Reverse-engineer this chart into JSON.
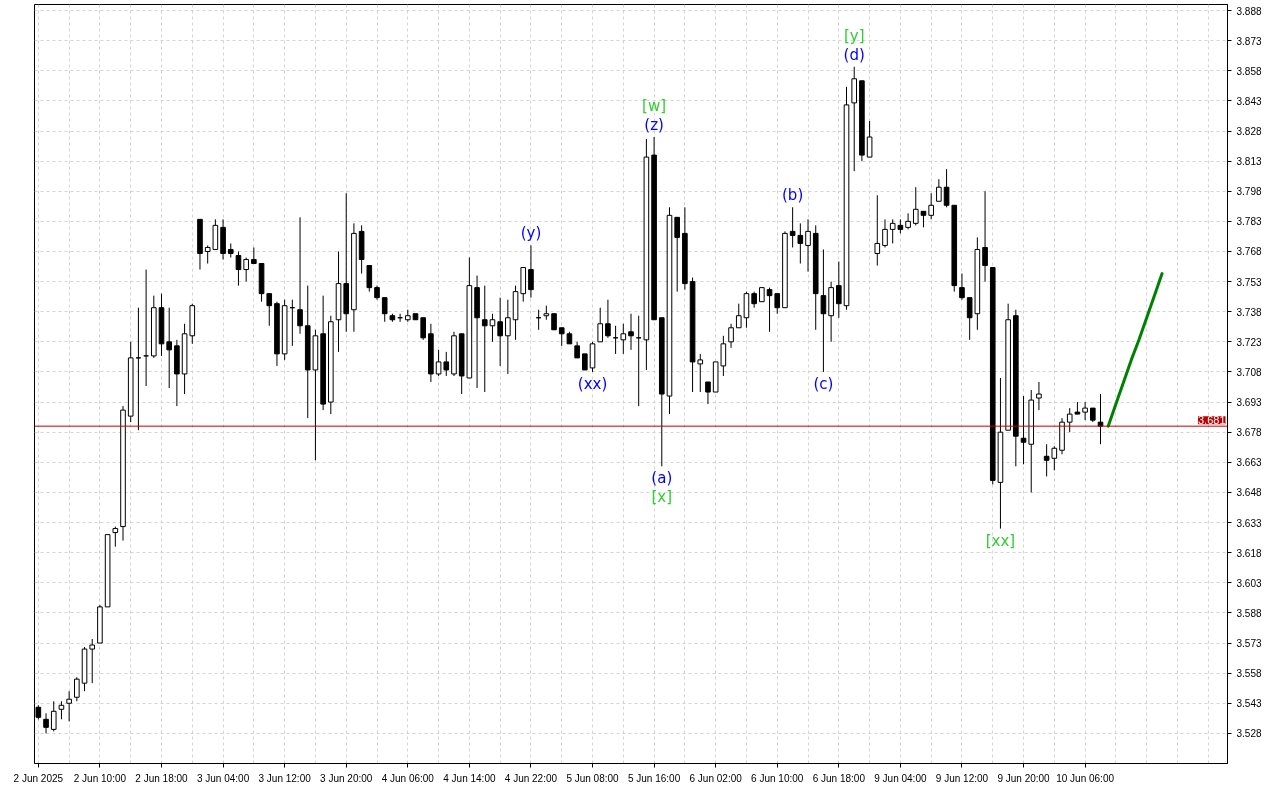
{
  "chart_data": {
    "type": "candlestick",
    "color": "#000000",
    "categories": [
      "2 Jun 2025",
      null,
      null,
      null,
      null,
      null,
      null,
      null,
      "2 Jun 10:00",
      null,
      null,
      null,
      null,
      null,
      null,
      null,
      "2 Jun 18:00",
      null,
      null,
      null,
      null,
      null,
      null,
      null,
      "3 Jun 04:00",
      null,
      null,
      null,
      null,
      null,
      null,
      null,
      "3 Jun 12:00",
      null,
      null,
      null,
      null,
      null,
      null,
      null,
      "3 Jun 20:00",
      null,
      null,
      null,
      null,
      null,
      null,
      null,
      "4 Jun 06:00",
      null,
      null,
      null,
      null,
      null,
      null,
      null,
      "4 Jun 14:00",
      null,
      null,
      null,
      null,
      null,
      null,
      null,
      "4 Jun 22:00",
      null,
      null,
      null,
      null,
      null,
      null,
      null,
      "5 Jun 08:00",
      null,
      null,
      null,
      null,
      null,
      null,
      null,
      "5 Jun 16:00",
      null,
      null,
      null,
      null,
      null,
      null,
      null,
      "6 Jun 02:00",
      null,
      null,
      null,
      null,
      null,
      null,
      null,
      "6 Jun 10:00",
      null,
      null,
      null,
      null,
      null,
      null,
      null,
      "6 Jun 18:00",
      null,
      null,
      null,
      null,
      null,
      null,
      null,
      "9 Jun 04:00",
      null,
      null,
      null,
      null,
      null,
      null,
      null,
      "9 Jun 12:00",
      null,
      null,
      null,
      null,
      null,
      null,
      null,
      "9 Jun 20:00",
      null,
      null,
      null,
      null,
      null,
      null,
      null,
      "10 Jun 06:00",
      null,
      null,
      null,
      null,
      null,
      null,
      null,
      null,
      null,
      null,
      null,
      null,
      null,
      null,
      null,
      null,
      null,
      null
    ],
    "ohlc": [
      [
        3.541,
        3.542,
        3.535,
        3.536
      ],
      [
        3.535,
        3.538,
        3.528,
        3.531
      ],
      [
        3.53,
        3.544,
        3.529,
        3.539
      ],
      [
        3.54,
        3.544,
        3.535,
        3.542
      ],
      [
        3.543,
        3.549,
        3.534,
        3.545
      ],
      [
        3.546,
        3.556,
        3.544,
        3.555
      ],
      [
        3.553,
        3.571,
        3.549,
        3.57
      ],
      [
        3.57,
        3.575,
        3.553,
        3.572
      ],
      [
        3.573,
        3.592,
        3.573,
        3.591
      ],
      [
        3.591,
        3.627,
        3.591,
        3.627
      ],
      [
        3.628,
        3.631,
        3.621,
        3.63
      ],
      [
        3.631,
        3.691,
        3.624,
        3.689
      ],
      [
        3.686,
        3.723,
        3.683,
        3.715
      ],
      [
        3.715,
        3.74,
        3.679,
        3.715
      ],
      [
        3.716,
        3.759,
        3.701,
        3.716
      ],
      [
        3.716,
        3.746,
        3.715,
        3.74
      ],
      [
        3.74,
        3.747,
        3.716,
        3.722
      ],
      [
        3.723,
        3.74,
        3.7,
        3.719
      ],
      [
        3.721,
        3.724,
        3.691,
        3.707
      ],
      [
        3.707,
        3.732,
        3.697,
        3.727
      ],
      [
        3.726,
        3.742,
        3.722,
        3.741
      ],
      [
        3.784,
        3.784,
        3.759,
        3.767
      ],
      [
        3.768,
        3.771,
        3.762,
        3.77
      ],
      [
        3.769,
        3.784,
        3.769,
        3.781
      ],
      [
        3.78,
        3.784,
        3.764,
        3.767
      ],
      [
        3.769,
        3.772,
        3.765,
        3.767
      ],
      [
        3.766,
        3.768,
        3.751,
        3.759
      ],
      [
        3.759,
        3.765,
        3.753,
        3.764
      ],
      [
        3.764,
        3.77,
        3.762,
        3.762
      ],
      [
        3.762,
        3.762,
        3.743,
        3.747
      ],
      [
        3.747,
        3.747,
        3.731,
        3.741
      ],
      [
        3.742,
        3.743,
        3.711,
        3.717
      ],
      [
        3.717,
        3.744,
        3.714,
        3.741
      ],
      [
        3.74,
        3.744,
        3.721,
        3.74
      ],
      [
        3.739,
        3.785,
        3.727,
        3.731
      ],
      [
        3.731,
        3.751,
        3.685,
        3.709
      ],
      [
        3.709,
        3.729,
        3.664,
        3.726
      ],
      [
        3.727,
        3.746,
        3.689,
        3.692
      ],
      [
        3.693,
        3.736,
        3.687,
        3.733
      ],
      [
        3.734,
        3.768,
        3.718,
        3.752
      ],
      [
        3.752,
        3.797,
        3.728,
        3.737
      ],
      [
        3.739,
        3.782,
        3.728,
        3.777
      ],
      [
        3.778,
        3.781,
        3.757,
        3.764
      ],
      [
        3.761,
        3.761,
        3.748,
        3.75
      ],
      [
        3.75,
        3.751,
        3.744,
        3.745
      ],
      [
        3.745,
        3.745,
        3.733,
        3.737
      ],
      [
        3.736,
        3.737,
        3.733,
        3.734
      ],
      [
        3.735,
        3.737,
        3.733,
        3.735
      ],
      [
        3.734,
        3.739,
        3.733,
        3.736
      ],
      [
        3.737,
        3.737,
        3.734,
        3.734
      ],
      [
        3.735,
        3.735,
        3.724,
        3.725
      ],
      [
        3.727,
        3.732,
        3.703,
        3.707
      ],
      [
        3.707,
        3.719,
        3.706,
        3.713
      ],
      [
        3.713,
        3.718,
        3.706,
        3.709
      ],
      [
        3.707,
        3.728,
        3.706,
        3.726
      ],
      [
        3.727,
        3.727,
        3.697,
        3.706
      ],
      [
        3.705,
        3.765,
        3.705,
        3.751
      ],
      [
        3.75,
        3.756,
        3.7,
        3.735
      ],
      [
        3.734,
        3.751,
        3.698,
        3.731
      ],
      [
        3.731,
        3.737,
        3.723,
        3.734
      ],
      [
        3.733,
        3.745,
        3.711,
        3.726
      ],
      [
        3.726,
        3.744,
        3.707,
        3.735
      ],
      [
        3.734,
        3.751,
        3.724,
        3.748
      ],
      [
        3.747,
        3.76,
        3.743,
        3.76
      ],
      [
        3.759,
        3.771,
        3.745,
        3.749
      ],
      [
        3.735,
        3.739,
        3.729,
        3.735
      ],
      [
        3.736,
        3.741,
        3.734,
        3.737
      ],
      [
        3.737,
        3.737,
        3.729,
        3.729
      ],
      [
        3.73,
        3.73,
        3.721,
        3.727
      ],
      [
        3.727,
        3.728,
        3.722,
        3.722
      ],
      [
        3.721,
        3.723,
        3.715,
        3.715
      ],
      [
        3.717,
        3.717,
        3.709,
        3.709
      ],
      [
        3.71,
        3.723,
        3.708,
        3.722
      ],
      [
        3.723,
        3.74,
        3.723,
        3.732
      ],
      [
        3.732,
        3.744,
        3.725,
        3.726
      ],
      [
        3.725,
        3.731,
        3.717,
        3.725
      ],
      [
        3.724,
        3.732,
        3.717,
        3.727
      ],
      [
        3.728,
        3.737,
        3.719,
        3.726
      ],
      [
        3.725,
        3.736,
        3.691,
        3.725
      ],
      [
        3.724,
        3.824,
        3.709,
        3.815
      ],
      [
        3.816,
        3.825,
        3.734,
        3.734
      ],
      [
        3.735,
        3.735,
        3.661,
        3.697
      ],
      [
        3.696,
        3.79,
        3.687,
        3.786
      ],
      [
        3.785,
        3.785,
        3.748,
        3.775
      ],
      [
        3.777,
        3.79,
        3.749,
        3.752
      ],
      [
        3.753,
        3.755,
        3.698,
        3.713
      ],
      [
        3.712,
        3.717,
        3.698,
        3.714
      ],
      [
        3.703,
        3.703,
        3.692,
        3.698
      ],
      [
        3.698,
        3.713,
        3.698,
        3.713
      ],
      [
        3.711,
        3.726,
        3.706,
        3.722
      ],
      [
        3.723,
        3.732,
        3.72,
        3.73
      ],
      [
        3.73,
        3.742,
        3.73,
        3.736
      ],
      [
        3.735,
        3.748,
        3.73,
        3.747
      ],
      [
        3.747,
        3.748,
        3.74,
        3.742
      ],
      [
        3.743,
        3.75,
        3.743,
        3.75
      ],
      [
        3.749,
        3.75,
        3.728,
        3.746
      ],
      [
        3.747,
        3.747,
        3.737,
        3.74
      ],
      [
        3.74,
        3.778,
        3.74,
        3.777
      ],
      [
        3.778,
        3.79,
        3.77,
        3.776
      ],
      [
        3.776,
        3.782,
        3.762,
        3.772
      ],
      [
        3.771,
        3.784,
        3.758,
        3.778
      ],
      [
        3.777,
        3.781,
        3.729,
        3.747
      ],
      [
        3.746,
        3.769,
        3.708,
        3.737
      ],
      [
        3.736,
        3.753,
        3.723,
        3.75
      ],
      [
        3.751,
        3.763,
        3.735,
        3.742
      ],
      [
        3.741,
        3.85,
        3.739,
        3.841
      ],
      [
        3.842,
        3.86,
        3.808,
        3.854
      ],
      [
        3.853,
        3.853,
        3.813,
        3.816
      ],
      [
        3.815,
        3.833,
        3.815,
        3.825
      ],
      [
        3.767,
        3.796,
        3.761,
        3.772
      ],
      [
        3.771,
        3.784,
        3.77,
        3.779
      ],
      [
        3.779,
        3.784,
        3.772,
        3.782
      ],
      [
        3.781,
        3.784,
        3.777,
        3.779
      ],
      [
        3.78,
        3.787,
        3.779,
        3.783
      ],
      [
        3.782,
        3.8,
        3.781,
        3.789
      ],
      [
        3.788,
        3.788,
        3.78,
        3.786
      ],
      [
        3.786,
        3.797,
        3.784,
        3.791
      ],
      [
        3.793,
        3.804,
        3.793,
        3.8
      ],
      [
        3.8,
        3.809,
        3.79,
        3.791
      ],
      [
        3.791,
        3.791,
        3.748,
        3.751
      ],
      [
        3.75,
        3.757,
        3.744,
        3.745
      ],
      [
        3.745,
        3.745,
        3.724,
        3.735
      ],
      [
        3.737,
        3.775,
        3.729,
        3.769
      ],
      [
        3.77,
        3.798,
        3.753,
        3.761
      ],
      [
        3.76,
        3.76,
        3.652,
        3.654
      ],
      [
        3.653,
        3.705,
        3.63,
        3.678
      ],
      [
        3.679,
        3.742,
        3.679,
        3.734
      ],
      [
        3.736,
        3.739,
        3.661,
        3.676
      ],
      [
        3.675,
        3.696,
        3.662,
        3.673
      ],
      [
        3.672,
        3.699,
        3.648,
        3.694
      ],
      [
        3.695,
        3.703,
        3.689,
        3.697
      ],
      [
        3.666,
        3.672,
        3.656,
        3.664
      ],
      [
        3.665,
        3.671,
        3.659,
        3.67
      ],
      [
        3.669,
        3.685,
        3.667,
        3.683
      ],
      [
        3.683,
        3.69,
        3.678,
        3.687
      ],
      [
        3.688,
        3.693,
        3.687,
        3.687
      ],
      [
        3.688,
        3.693,
        3.684,
        3.69
      ],
      [
        3.69,
        3.69,
        3.683,
        3.684
      ],
      [
        3.683,
        3.697,
        3.672,
        3.681
      ],
      null,
      null,
      null,
      null,
      null,
      null,
      null,
      null,
      null,
      null,
      null,
      null,
      null,
      null,
      null,
      null
    ],
    "colors": [
      "#000000",
      "#000000",
      "#ffffff",
      "#ffffff",
      "#ffffff",
      "#ffffff",
      "#ffffff",
      "#ffffff",
      "#ffffff",
      "#ffffff",
      "#ffffff",
      "#ffffff",
      "#ffffff",
      "#000000",
      "#000000",
      "#ffffff",
      "#000000",
      "#000000",
      "#000000",
      "#ffffff",
      "#ffffff",
      "#000000",
      "#ffffff",
      "#ffffff",
      "#000000",
      "#000000",
      "#000000",
      "#ffffff",
      "#000000",
      "#000000",
      "#000000",
      "#000000",
      "#ffffff",
      "#000000",
      "#000000",
      "#000000",
      "#ffffff",
      "#000000",
      "#ffffff",
      "#ffffff",
      "#000000",
      "#ffffff",
      "#000000",
      "#000000",
      "#000000",
      "#000000",
      "#000000",
      "#000000",
      "#ffffff",
      "#000000",
      "#000000",
      "#000000",
      "#ffffff",
      "#000000",
      "#ffffff",
      "#000000",
      "#ffffff",
      "#000000",
      "#000000",
      "#ffffff",
      "#000000",
      "#ffffff",
      "#ffffff",
      "#ffffff",
      "#000000",
      "#000000",
      "#ffffff",
      "#000000",
      "#000000",
      "#000000",
      "#000000",
      "#000000",
      "#ffffff",
      "#ffffff",
      "#000000",
      "#000000",
      "#ffffff",
      "#000000",
      "#000000",
      "#ffffff",
      "#000000",
      "#000000",
      "#ffffff",
      "#000000",
      "#000000",
      "#000000",
      "#ffffff",
      "#000000",
      "#ffffff",
      "#ffffff",
      "#ffffff",
      "#ffffff",
      "#ffffff",
      "#000000",
      "#ffffff",
      "#000000",
      "#000000",
      "#ffffff",
      "#000000",
      "#000000",
      "#ffffff",
      "#000000",
      "#000000",
      "#ffffff",
      "#000000",
      "#ffffff",
      "#ffffff",
      "#000000",
      "#ffffff",
      "#ffffff",
      "#ffffff",
      "#ffffff",
      "#000000",
      "#ffffff",
      "#ffffff",
      "#000000",
      "#ffffff",
      "#ffffff",
      "#000000",
      "#000000",
      "#000000",
      "#000000",
      "#ffffff",
      "#000000",
      "#000000",
      "#ffffff",
      "#ffffff",
      "#000000",
      "#000000",
      "#ffffff",
      "#ffffff",
      "#000000",
      "#ffffff",
      "#ffffff",
      "#ffffff",
      "#000000",
      "#ffffff",
      "#000000",
      "#000000",
      null,
      null,
      null,
      null,
      null,
      null,
      null,
      null,
      null,
      null,
      null,
      null,
      null,
      null,
      null,
      null
    ],
    "series": [
      {
        "type": "line",
        "color": "#008000",
        "values": [
          null,
          null,
          null,
          null,
          null,
          null,
          null,
          null,
          null,
          null,
          null,
          null,
          null,
          null,
          null,
          null,
          null,
          null,
          null,
          null,
          null,
          null,
          null,
          null,
          null,
          null,
          null,
          null,
          null,
          null,
          null,
          null,
          null,
          null,
          null,
          null,
          null,
          null,
          null,
          null,
          null,
          null,
          null,
          null,
          null,
          null,
          null,
          null,
          null,
          null,
          null,
          null,
          null,
          null,
          null,
          null,
          null,
          null,
          null,
          null,
          null,
          null,
          null,
          null,
          null,
          null,
          null,
          null,
          null,
          null,
          null,
          null,
          null,
          null,
          null,
          null,
          null,
          null,
          null,
          null,
          null,
          null,
          null,
          null,
          null,
          null,
          null,
          null,
          null,
          null,
          null,
          null,
          null,
          null,
          null,
          null,
          null,
          null,
          null,
          null,
          null,
          null,
          null,
          null,
          null,
          null,
          null,
          null,
          null,
          null,
          null,
          null,
          null,
          null,
          null,
          null,
          null,
          null,
          null,
          null,
          null,
          null,
          null,
          null,
          null,
          null,
          null,
          null,
          null,
          null,
          null,
          null,
          null,
          null,
          null,
          null,
          null,
          null,
          null,
          3.681,
          3.692,
          3.703,
          3.714,
          3.724,
          3.735,
          3.746,
          3.757,
          null,
          null,
          null,
          null,
          null,
          null,
          null,
          null
        ]
      }
    ],
    "ylim": [
      3.513,
      3.891
    ],
    "yticks": [
      3.528,
      3.543,
      3.558,
      3.573,
      3.588,
      3.603,
      3.618,
      3.633,
      3.648,
      3.663,
      3.678,
      3.693,
      3.708,
      3.723,
      3.738,
      3.753,
      3.768,
      3.783,
      3.798,
      3.813,
      3.828,
      3.843,
      3.858,
      3.873,
      3.888
    ],
    "grid": true,
    "ref_lines": [
      {
        "axis": "y",
        "value": 3.681,
        "label": "3.681",
        "color": "#c00000"
      }
    ],
    "annotations": [
      {
        "text": "(y)",
        "x": "4 Jun 22:00",
        "y": 3.771
      },
      {
        "text": "(xx)",
        "x": "5 Jun 08:00",
        "y": 3.708
      },
      {
        "text": "(z)",
        "x": "5 Jun 16:00",
        "y": 3.825
      },
      {
        "text": "[w]",
        "x": "5 Jun 16:00",
        "y": 3.825
      },
      {
        "text": "(a)",
        "y": 3.661
      },
      {
        "text": "[x]",
        "y": 3.661
      },
      {
        "text": "(b)",
        "y": 3.79
      },
      {
        "text": "(c)",
        "y": 3.708
      },
      {
        "text": "(d)",
        "y": 3.86
      },
      {
        "text": "[y]",
        "y": 3.86
      },
      {
        "text": "[xx]",
        "y": 3.63
      }
    ]
  }
}
